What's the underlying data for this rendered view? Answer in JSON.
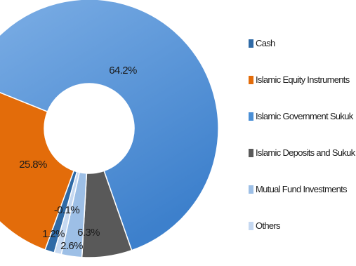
{
  "chart_data": {
    "type": "pie",
    "donut": true,
    "title": "",
    "legend_position": "right",
    "categories": [
      "Cash",
      "Islamic Equity Instruments",
      "Islamic Government Sukuk",
      "Islamic Deposits and Sukuk",
      "Mutual Fund Investments",
      "Others"
    ],
    "values": [
      1.2,
      25.8,
      64.2,
      6.3,
      2.6,
      -0.1
    ],
    "data_labels": [
      "1.2%",
      "25.8%",
      "64.2%",
      "6.3%",
      "2.6%",
      "-0.1%"
    ],
    "colors": [
      "#2f6aa6",
      "#e36c0a",
      "#4a8fd6",
      "#595959",
      "#9dbfe6",
      "#c5d8f1"
    ]
  }
}
